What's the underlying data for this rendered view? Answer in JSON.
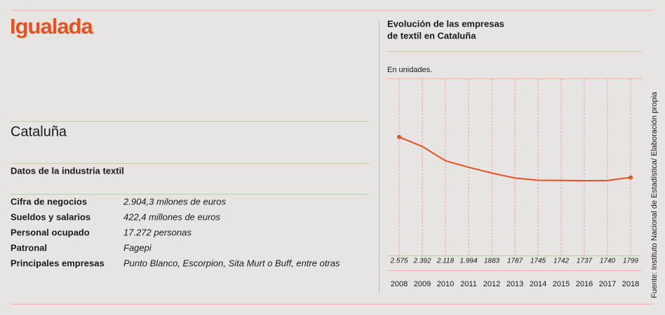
{
  "header": {
    "title": "Igualada",
    "region": "Cataluña",
    "section": "Datos de la industria textil"
  },
  "table": {
    "rows": [
      [
        "Cifra de negocios",
        "2.904,3 milones de euros"
      ],
      [
        "Sueldos y salarios",
        "422,4 millones de euros"
      ],
      [
        "Personal ocupado",
        "17.272 personas"
      ],
      [
        "Patronal",
        "Fagepi"
      ],
      [
        "Principales empresas",
        "Punto Blanco, Escorpion, Sita Murt o Buff, entre otras"
      ]
    ]
  },
  "chart_data": {
    "type": "line",
    "title": [
      "Evolución de las empresas",
      "de textil en Cataluña"
    ],
    "subtitle": "En unidades.",
    "source": "Fuente: Instituto Nacional de Estadística/ Elaboración propia",
    "categories": [
      "2008",
      "2009",
      "2010",
      "2011",
      "2012",
      "2013",
      "2014",
      "2015",
      "2016",
      "2017",
      "2018"
    ],
    "values": [
      2575,
      2392,
      2118,
      1994,
      1883,
      1787,
      1745,
      1742,
      1737,
      1740,
      1799
    ],
    "value_labels": [
      "2.575",
      "2.392",
      "2.118",
      "1.994",
      "1883",
      "1787",
      "1745",
      "1742",
      "1737",
      "1740",
      "1799"
    ],
    "color": "#e8501e",
    "ylim": [
      300,
      3700
    ]
  }
}
